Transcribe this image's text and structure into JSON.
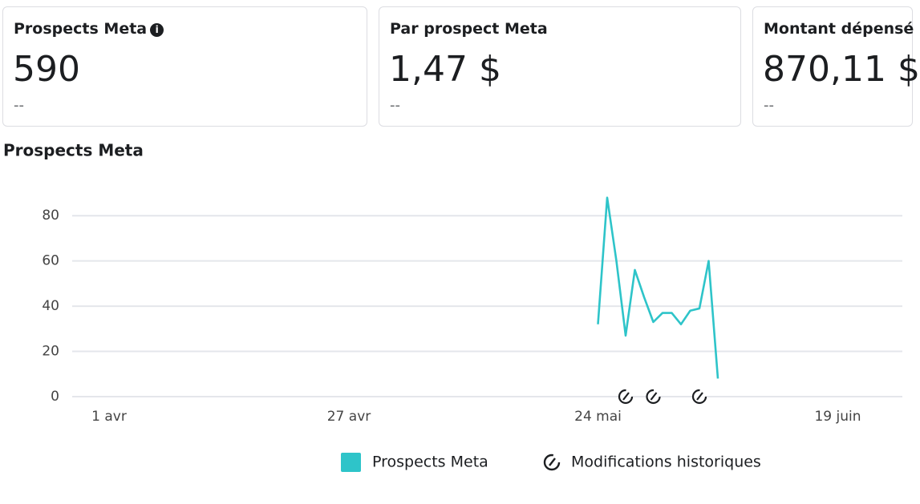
{
  "cards": [
    {
      "title": "Prospects Meta",
      "value": "590",
      "change": "--"
    },
    {
      "title": "Par prospect Meta",
      "value": "1,47 $",
      "change": "--"
    },
    {
      "title": "Montant dépensé",
      "value": "870,11 $",
      "change": "--"
    }
  ],
  "chart_data": {
    "type": "line",
    "title": "Prospects Meta",
    "x": [
      53,
      54,
      55,
      56,
      57,
      58,
      59,
      60,
      61,
      62,
      63,
      64,
      65,
      66
    ],
    "series": [
      {
        "name": "Prospects Meta",
        "color": "#2ec4c9",
        "values": [
          32,
          88,
          60,
          27,
          56,
          44,
          33,
          37,
          37,
          32,
          38,
          39,
          60,
          8
        ]
      }
    ],
    "events": {
      "name": "Modifications historiques",
      "x": [
        56,
        59,
        64
      ]
    },
    "xlim": [
      -4,
      86
    ],
    "xticks": [
      {
        "value": 0,
        "label": "1 avr"
      },
      {
        "value": 26,
        "label": "27 avr"
      },
      {
        "value": 53,
        "label": "24 mai"
      },
      {
        "value": 79,
        "label": "19 juin"
      }
    ],
    "ylim": [
      0,
      90
    ],
    "yticks": [
      0,
      20,
      40,
      60,
      80
    ],
    "grid": true
  }
}
